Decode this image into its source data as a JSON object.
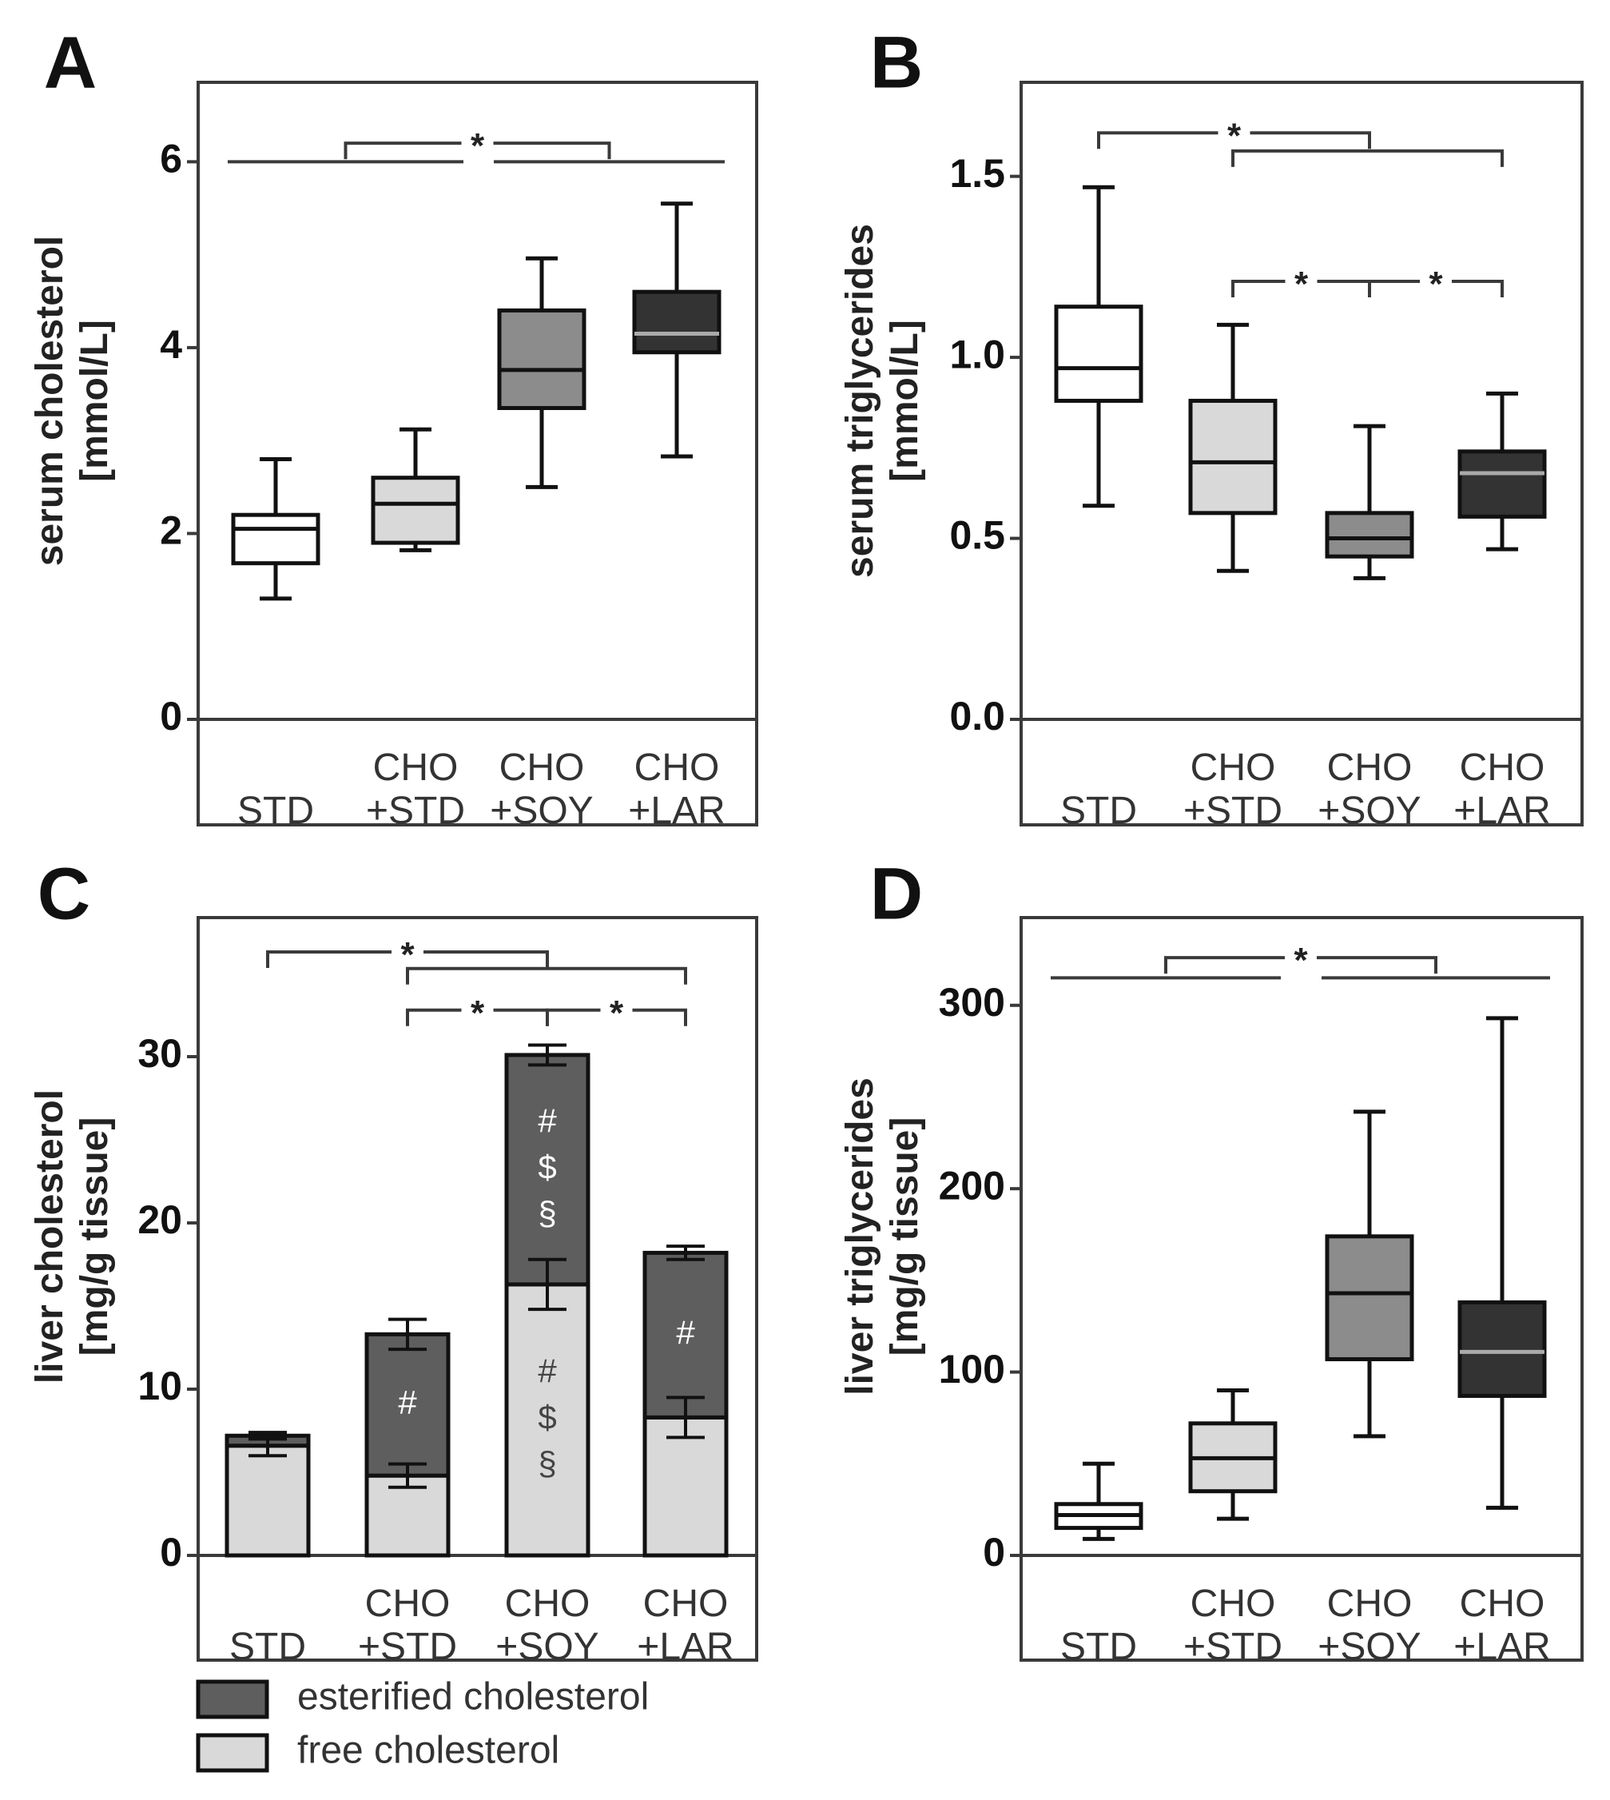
{
  "colors": {
    "STD": "#ffffff",
    "CHO+STD": "#d9d9d9",
    "CHO+SOY": "#8c8c8c",
    "CHO+LAR": "#333333",
    "esterified": "#5e5e5e",
    "free": "#d9d9d9",
    "line": "#3a3a3a"
  },
  "legend": {
    "esterified": "esterified cholesterol",
    "free": "free cholesterol"
  },
  "chart_data": [
    {
      "id": "A",
      "panel_label": "A",
      "type": "box",
      "ylabel": [
        "serum cholesterol",
        "[mmol/L]"
      ],
      "ylim": [
        0,
        6.7
      ],
      "yticks": [
        0,
        2,
        4,
        6
      ],
      "ytick_labels": [
        "0",
        "2",
        "4",
        "6"
      ],
      "categories": [
        [
          "STD"
        ],
        [
          "CHO",
          "+STD"
        ],
        [
          "CHO",
          "+SOY"
        ],
        [
          "CHO",
          "+LAR"
        ]
      ],
      "fill_keys": [
        "STD",
        "CHO+STD",
        "CHO+SOY",
        "CHO+LAR"
      ],
      "boxes": [
        {
          "min": 1.3,
          "q1": 1.68,
          "median": 2.05,
          "q3": 2.2,
          "max": 2.8
        },
        {
          "min": 1.82,
          "q1": 1.9,
          "median": 2.32,
          "q3": 2.6,
          "max": 3.12
        },
        {
          "min": 2.5,
          "q1": 3.35,
          "median": 3.76,
          "q3": 4.4,
          "max": 4.96
        },
        {
          "min": 2.83,
          "q1": 3.95,
          "median": 4.15,
          "q3": 4.6,
          "max": 5.55
        }
      ],
      "significance": {
        "pair_brackets": [
          {
            "left": 0,
            "right": 1,
            "y": 6.0
          },
          {
            "left": 2,
            "right": 3,
            "y": 6.0
          }
        ],
        "group_brackets": [
          {
            "from": 0.5,
            "to": 2.5,
            "y": 6.2,
            "label": "*"
          }
        ]
      }
    },
    {
      "id": "B",
      "panel_label": "B",
      "type": "box",
      "ylabel": [
        "serum triglycerides",
        "[mmol/L]"
      ],
      "ylim": [
        0,
        1.72
      ],
      "yticks": [
        0,
        0.5,
        1.0,
        1.5
      ],
      "ytick_labels": [
        "0.0",
        "0.5",
        "1.0",
        "1.5"
      ],
      "categories": [
        [
          "STD"
        ],
        [
          "CHO",
          "+STD"
        ],
        [
          "CHO",
          "+SOY"
        ],
        [
          "CHO",
          "+LAR"
        ]
      ],
      "fill_keys": [
        "STD",
        "CHO+STD",
        "CHO+SOY",
        "CHO+LAR"
      ],
      "boxes": [
        {
          "min": 0.59,
          "q1": 0.88,
          "median": 0.97,
          "q3": 1.14,
          "max": 1.47
        },
        {
          "min": 0.41,
          "q1": 0.57,
          "median": 0.71,
          "q3": 0.88,
          "max": 1.09
        },
        {
          "min": 0.39,
          "q1": 0.45,
          "median": 0.5,
          "q3": 0.57,
          "max": 0.81
        },
        {
          "min": 0.47,
          "q1": 0.56,
          "median": 0.68,
          "q3": 0.74,
          "max": 0.9
        }
      ],
      "significance": {
        "pair_brackets": [],
        "group_brackets": [
          {
            "from": 0,
            "to": 2,
            "y": 1.62,
            "label": "*"
          },
          {
            "from": 1,
            "to": 3,
            "y": 1.57,
            "label": ""
          },
          {
            "from": 1,
            "to": 2,
            "y": 1.21,
            "label": "*"
          },
          {
            "from": 2,
            "to": 3,
            "y": 1.21,
            "label": "*"
          }
        ]
      }
    },
    {
      "id": "C",
      "panel_label": "C",
      "type": "stacked_bar",
      "ylabel": [
        "liver cholesterol",
        "[mg/g tissue]"
      ],
      "ylim": [
        0,
        37.5
      ],
      "yticks": [
        0,
        10,
        20,
        30
      ],
      "ytick_labels": [
        "0",
        "10",
        "20",
        "30"
      ],
      "categories": [
        [
          "STD"
        ],
        [
          "CHO",
          "+STD"
        ],
        [
          "CHO",
          "+SOY"
        ],
        [
          "CHO",
          "+LAR"
        ]
      ],
      "series": [
        {
          "name": "free cholesterol",
          "key": "free",
          "values": [
            6.6,
            4.8,
            16.3,
            8.3
          ],
          "errors": [
            0.6,
            0.7,
            1.5,
            1.2
          ]
        },
        {
          "name": "esterified cholesterol",
          "key": "esterified",
          "values": [
            0.6,
            8.5,
            13.8,
            9.9
          ],
          "errors": [
            0.2,
            0.9,
            0.6,
            0.4
          ]
        }
      ],
      "annotations": [
        {
          "category": 1,
          "segment": "esterified",
          "lines": [
            "#"
          ]
        },
        {
          "category": 2,
          "segment": "esterified",
          "lines": [
            "#",
            "$",
            "§"
          ]
        },
        {
          "category": 2,
          "segment": "free",
          "lines": [
            "#",
            "$",
            "§"
          ]
        },
        {
          "category": 3,
          "segment": "esterified",
          "lines": [
            "#"
          ]
        }
      ],
      "significance": {
        "pair_brackets": [],
        "group_brackets": [
          {
            "from": 0,
            "to": 2,
            "y": 36.3,
            "label": "*"
          },
          {
            "from": 1,
            "to": 3,
            "y": 35.3,
            "label": ""
          },
          {
            "from": 1,
            "to": 2,
            "y": 32.8,
            "label": "*"
          },
          {
            "from": 2,
            "to": 3,
            "y": 32.8,
            "label": "*"
          }
        ]
      }
    },
    {
      "id": "D",
      "panel_label": "D",
      "type": "box",
      "ylabel": [
        "liver triglycerides",
        "[mg/g tissue]"
      ],
      "ylim": [
        0,
        340
      ],
      "yticks": [
        0,
        100,
        200,
        300
      ],
      "ytick_labels": [
        "0",
        "100",
        "200",
        "300"
      ],
      "categories": [
        [
          "STD"
        ],
        [
          "CHO",
          "+STD"
        ],
        [
          "CHO",
          "+SOY"
        ],
        [
          "CHO",
          "+LAR"
        ]
      ],
      "fill_keys": [
        "STD",
        "CHO+STD",
        "CHO+SOY",
        "CHO+LAR"
      ],
      "boxes": [
        {
          "min": 9,
          "q1": 15,
          "median": 22,
          "q3": 28,
          "max": 50
        },
        {
          "min": 20,
          "q1": 35,
          "median": 53,
          "q3": 72,
          "max": 90
        },
        {
          "min": 65,
          "q1": 107,
          "median": 143,
          "q3": 174,
          "max": 242
        },
        {
          "min": 26,
          "q1": 87,
          "median": 111,
          "q3": 138,
          "max": 293
        }
      ],
      "significance": {
        "pair_brackets": [
          {
            "left": 0,
            "right": 1,
            "y": 315
          },
          {
            "left": 2,
            "right": 3,
            "y": 315
          }
        ],
        "group_brackets": [
          {
            "from": 0.5,
            "to": 2.5,
            "y": 326,
            "label": "*"
          }
        ]
      }
    }
  ]
}
